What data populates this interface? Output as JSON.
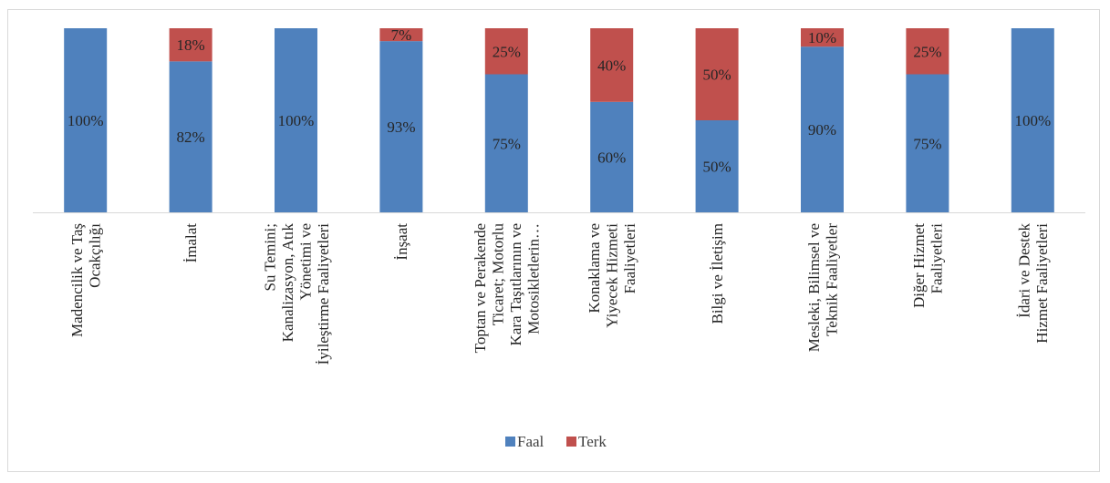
{
  "chart_data": {
    "type": "bar",
    "stacked": true,
    "percent": true,
    "categories": [
      [
        "Madencilik ve Taş",
        "Ocakçılığı"
      ],
      [
        "İmalat"
      ],
      [
        "Su Temini;",
        "Kanalizasyon, Atık",
        "Yönetimi ve",
        "İyileştirme Faaliyetleri"
      ],
      [
        "İnşaat"
      ],
      [
        "Toptan ve Perakende",
        "Ticaret; Motorlu",
        "Kara Taşıtlarının ve",
        "Motosikletlerin…"
      ],
      [
        "Konaklama ve",
        "Yiyecek Hizmeti",
        "Faaliyetleri"
      ],
      [
        "Bilgi ve İletişim"
      ],
      [
        "Mesleki, Bilimsel ve",
        "Teknik Faaliyetler"
      ],
      [
        "Diğer Hizmet",
        "Faaliyetleri"
      ],
      [
        "İdari ve Destek",
        "Hizmet Faaliyetleri"
      ]
    ],
    "series": [
      {
        "name": "Faal",
        "color": "#4f81bd",
        "values": [
          100,
          82,
          100,
          93,
          75,
          60,
          50,
          90,
          75,
          100
        ]
      },
      {
        "name": "Terk",
        "color": "#c0504d",
        "values": [
          0,
          18,
          0,
          7,
          25,
          40,
          50,
          10,
          25,
          0
        ]
      }
    ],
    "ylim": [
      0,
      100
    ],
    "legend": "bottom",
    "grid": false
  }
}
